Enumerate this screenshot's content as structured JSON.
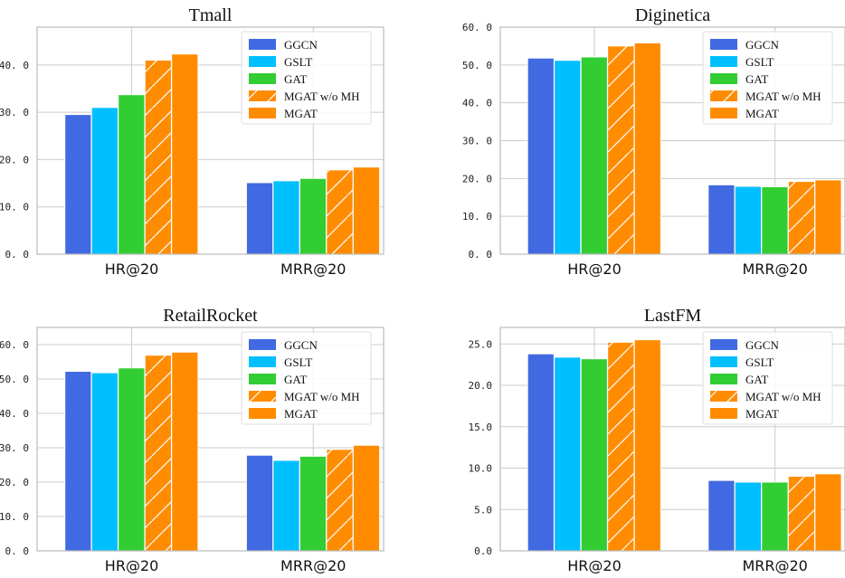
{
  "colors": {
    "GGCN": "#4169E1",
    "GSLT": "#00BFFF",
    "GAT": "#32CD32",
    "MGAT w/o MH": "#FF8C00",
    "MGAT": "#FF8C00",
    "grid": "#cccccc",
    "axis": "#bbbbbb"
  },
  "legend_position": "upper-right",
  "grid": true,
  "chart_data": [
    {
      "type": "bar",
      "title": "Tmall",
      "categories": [
        "HR@20",
        "MRR@20"
      ],
      "ylim": [
        0,
        48
      ],
      "yticks": [
        0,
        10,
        20,
        30,
        40
      ],
      "ytick_labels": [
        "0. 0",
        "10. 0",
        "20. 0",
        "30. 0",
        "40. 0"
      ],
      "series": [
        {
          "name": "GGCN",
          "values": [
            29.5,
            15.1
          ]
        },
        {
          "name": "GSLT",
          "values": [
            31.0,
            15.5
          ]
        },
        {
          "name": "GAT",
          "values": [
            33.7,
            16.0
          ]
        },
        {
          "name": "MGAT w/o MH",
          "values": [
            41.0,
            17.8
          ],
          "hatch": true
        },
        {
          "name": "MGAT",
          "values": [
            42.3,
            18.4
          ]
        }
      ]
    },
    {
      "type": "bar",
      "title": "Diginetica",
      "categories": [
        "HR@20",
        "MRR@20"
      ],
      "ylim": [
        0,
        60
      ],
      "yticks": [
        0,
        10,
        20,
        30,
        40,
        50,
        60
      ],
      "ytick_labels": [
        "0. 0",
        "10. 0",
        "20. 0",
        "30. 0",
        "40. 0",
        "50. 0",
        "60. 0"
      ],
      "series": [
        {
          "name": "GGCN",
          "values": [
            51.8,
            18.3
          ]
        },
        {
          "name": "GSLT",
          "values": [
            51.2,
            17.9
          ]
        },
        {
          "name": "GAT",
          "values": [
            52.1,
            17.8
          ]
        },
        {
          "name": "MGAT w/o MH",
          "values": [
            55.0,
            19.2
          ],
          "hatch": true
        },
        {
          "name": "MGAT",
          "values": [
            55.8,
            19.6
          ]
        }
      ]
    },
    {
      "type": "bar",
      "title": "RetailRocket",
      "categories": [
        "HR@20",
        "MRR@20"
      ],
      "ylim": [
        0,
        65
      ],
      "yticks": [
        0,
        10,
        20,
        30,
        40,
        50,
        60
      ],
      "ytick_labels": [
        "0. 0",
        "10. 0",
        "20. 0",
        "30. 0",
        "40. 0",
        "50. 0",
        "60. 0"
      ],
      "series": [
        {
          "name": "GGCN",
          "values": [
            52.2,
            27.8
          ]
        },
        {
          "name": "GSLT",
          "values": [
            51.8,
            26.3
          ]
        },
        {
          "name": "GAT",
          "values": [
            53.2,
            27.5
          ]
        },
        {
          "name": "MGAT w/o MH",
          "values": [
            56.9,
            29.5
          ],
          "hatch": true
        },
        {
          "name": "MGAT",
          "values": [
            57.8,
            30.7
          ]
        }
      ]
    },
    {
      "type": "bar",
      "title": "LastFM",
      "categories": [
        "HR@20",
        "MRR@20"
      ],
      "ylim": [
        0,
        27
      ],
      "yticks": [
        0,
        5,
        10,
        15,
        20,
        25
      ],
      "ytick_labels": [
        "0.0",
        "5.0",
        "10.0",
        "15.0",
        "20.0",
        "25.0"
      ],
      "series": [
        {
          "name": "GGCN",
          "values": [
            23.8,
            8.5
          ]
        },
        {
          "name": "GSLT",
          "values": [
            23.4,
            8.3
          ]
        },
        {
          "name": "GAT",
          "values": [
            23.2,
            8.3
          ]
        },
        {
          "name": "MGAT w/o MH",
          "values": [
            25.2,
            9.0
          ],
          "hatch": true
        },
        {
          "name": "MGAT",
          "values": [
            25.5,
            9.3
          ]
        }
      ]
    }
  ]
}
